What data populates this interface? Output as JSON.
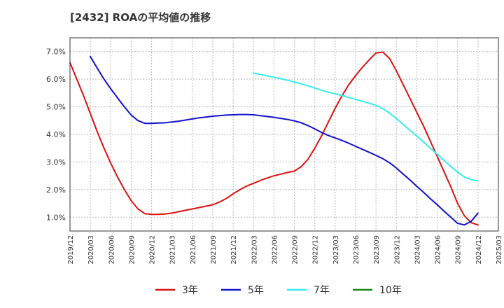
{
  "title": "[2432]  ROAの平均値の推移",
  "chart_data": {
    "type": "line",
    "ylim": [
      0.5,
      7.5
    ],
    "yticks": [
      1.0,
      2.0,
      3.0,
      4.0,
      5.0,
      6.0,
      7.0
    ],
    "ytick_labels": [
      "1.0%",
      "2.0%",
      "3.0%",
      "4.0%",
      "5.0%",
      "6.0%",
      "7.0%"
    ],
    "grid": true,
    "legend_position": "bottom",
    "xticks": [
      "2019/12",
      "2020/03",
      "2020/06",
      "2020/09",
      "2020/12",
      "2021/03",
      "2021/06",
      "2021/09",
      "2021/12",
      "2022/03",
      "2022/06",
      "2022/09",
      "2022/12",
      "2023/03",
      "2023/06",
      "2023/09",
      "2023/12",
      "2024/03",
      "2024/06",
      "2024/09",
      "2024/12",
      "2025/03"
    ],
    "series": [
      {
        "name": "3年",
        "color": "#dd1111",
        "points": [
          [
            "2019/12",
            6.6
          ],
          [
            "2020/01",
            6.0
          ],
          [
            "2020/02",
            5.4
          ],
          [
            "2020/03",
            4.75
          ],
          [
            "2020/04",
            4.1
          ],
          [
            "2020/05",
            3.5
          ],
          [
            "2020/06",
            2.95
          ],
          [
            "2020/07",
            2.45
          ],
          [
            "2020/08",
            2.0
          ],
          [
            "2020/09",
            1.6
          ],
          [
            "2020/10",
            1.3
          ],
          [
            "2020/11",
            1.13
          ],
          [
            "2020/12",
            1.1
          ],
          [
            "2021/01",
            1.1
          ],
          [
            "2021/02",
            1.12
          ],
          [
            "2021/03",
            1.15
          ],
          [
            "2021/04",
            1.2
          ],
          [
            "2021/05",
            1.25
          ],
          [
            "2021/06",
            1.3
          ],
          [
            "2021/07",
            1.35
          ],
          [
            "2021/08",
            1.4
          ],
          [
            "2021/09",
            1.45
          ],
          [
            "2021/10",
            1.55
          ],
          [
            "2021/11",
            1.68
          ],
          [
            "2021/12",
            1.85
          ],
          [
            "2022/01",
            2.0
          ],
          [
            "2022/02",
            2.13
          ],
          [
            "2022/03",
            2.23
          ],
          [
            "2022/04",
            2.33
          ],
          [
            "2022/05",
            2.42
          ],
          [
            "2022/06",
            2.5
          ],
          [
            "2022/07",
            2.56
          ],
          [
            "2022/08",
            2.62
          ],
          [
            "2022/09",
            2.67
          ],
          [
            "2022/10",
            2.83
          ],
          [
            "2022/11",
            3.1
          ],
          [
            "2022/12",
            3.5
          ],
          [
            "2023/01",
            3.95
          ],
          [
            "2023/02",
            4.45
          ],
          [
            "2023/03",
            4.95
          ],
          [
            "2023/04",
            5.4
          ],
          [
            "2023/05",
            5.8
          ],
          [
            "2023/06",
            6.13
          ],
          [
            "2023/07",
            6.43
          ],
          [
            "2023/08",
            6.7
          ],
          [
            "2023/09",
            6.95
          ],
          [
            "2023/10",
            6.98
          ],
          [
            "2023/11",
            6.75
          ],
          [
            "2023/12",
            6.3
          ],
          [
            "2024/01",
            5.8
          ],
          [
            "2024/02",
            5.3
          ],
          [
            "2024/03",
            4.8
          ],
          [
            "2024/04",
            4.3
          ],
          [
            "2024/05",
            3.75
          ],
          [
            "2024/06",
            3.2
          ],
          [
            "2024/07",
            2.65
          ],
          [
            "2024/08",
            2.1
          ],
          [
            "2024/09",
            1.5
          ],
          [
            "2024/10",
            1.05
          ],
          [
            "2024/11",
            0.8
          ],
          [
            "2024/12",
            0.72
          ]
        ]
      },
      {
        "name": "5年",
        "color": "#1111cc",
        "points": [
          [
            "2020/03",
            6.82
          ],
          [
            "2020/04",
            6.4
          ],
          [
            "2020/05",
            6.0
          ],
          [
            "2020/06",
            5.65
          ],
          [
            "2020/07",
            5.32
          ],
          [
            "2020/08",
            5.0
          ],
          [
            "2020/09",
            4.7
          ],
          [
            "2020/10",
            4.5
          ],
          [
            "2020/11",
            4.4
          ],
          [
            "2020/12",
            4.4
          ],
          [
            "2021/01",
            4.41
          ],
          [
            "2021/02",
            4.42
          ],
          [
            "2021/03",
            4.45
          ],
          [
            "2021/04",
            4.48
          ],
          [
            "2021/05",
            4.52
          ],
          [
            "2021/06",
            4.56
          ],
          [
            "2021/07",
            4.6
          ],
          [
            "2021/08",
            4.63
          ],
          [
            "2021/09",
            4.66
          ],
          [
            "2021/10",
            4.68
          ],
          [
            "2021/11",
            4.7
          ],
          [
            "2021/12",
            4.71
          ],
          [
            "2022/01",
            4.72
          ],
          [
            "2022/02",
            4.72
          ],
          [
            "2022/03",
            4.71
          ],
          [
            "2022/04",
            4.68
          ],
          [
            "2022/05",
            4.65
          ],
          [
            "2022/06",
            4.62
          ],
          [
            "2022/07",
            4.58
          ],
          [
            "2022/08",
            4.54
          ],
          [
            "2022/09",
            4.49
          ],
          [
            "2022/10",
            4.42
          ],
          [
            "2022/11",
            4.32
          ],
          [
            "2022/12",
            4.2
          ],
          [
            "2023/01",
            4.07
          ],
          [
            "2023/02",
            3.96
          ],
          [
            "2023/03",
            3.87
          ],
          [
            "2023/04",
            3.78
          ],
          [
            "2023/05",
            3.68
          ],
          [
            "2023/06",
            3.57
          ],
          [
            "2023/07",
            3.46
          ],
          [
            "2023/08",
            3.35
          ],
          [
            "2023/09",
            3.24
          ],
          [
            "2023/10",
            3.12
          ],
          [
            "2023/11",
            2.97
          ],
          [
            "2023/12",
            2.78
          ],
          [
            "2024/01",
            2.56
          ],
          [
            "2024/02",
            2.35
          ],
          [
            "2024/03",
            2.12
          ],
          [
            "2024/04",
            1.9
          ],
          [
            "2024/05",
            1.67
          ],
          [
            "2024/06",
            1.45
          ],
          [
            "2024/07",
            1.22
          ],
          [
            "2024/08",
            1.0
          ],
          [
            "2024/09",
            0.78
          ],
          [
            "2024/10",
            0.72
          ],
          [
            "2024/11",
            0.85
          ],
          [
            "2024/12",
            1.15
          ]
        ]
      },
      {
        "name": "7年",
        "color": "#33eeee",
        "points": [
          [
            "2022/03",
            6.22
          ],
          [
            "2022/04",
            6.17
          ],
          [
            "2022/05",
            6.12
          ],
          [
            "2022/06",
            6.07
          ],
          [
            "2022/07",
            6.02
          ],
          [
            "2022/08",
            5.96
          ],
          [
            "2022/09",
            5.9
          ],
          [
            "2022/10",
            5.83
          ],
          [
            "2022/11",
            5.76
          ],
          [
            "2022/12",
            5.68
          ],
          [
            "2023/01",
            5.6
          ],
          [
            "2023/02",
            5.53
          ],
          [
            "2023/03",
            5.47
          ],
          [
            "2023/04",
            5.41
          ],
          [
            "2023/05",
            5.34
          ],
          [
            "2023/06",
            5.27
          ],
          [
            "2023/07",
            5.2
          ],
          [
            "2023/08",
            5.13
          ],
          [
            "2023/09",
            5.05
          ],
          [
            "2023/10",
            4.93
          ],
          [
            "2023/11",
            4.77
          ],
          [
            "2023/12",
            4.57
          ],
          [
            "2024/01",
            4.36
          ],
          [
            "2024/02",
            4.15
          ],
          [
            "2024/03",
            3.94
          ],
          [
            "2024/04",
            3.72
          ],
          [
            "2024/05",
            3.5
          ],
          [
            "2024/06",
            3.28
          ],
          [
            "2024/07",
            3.06
          ],
          [
            "2024/08",
            2.84
          ],
          [
            "2024/09",
            2.63
          ],
          [
            "2024/10",
            2.46
          ],
          [
            "2024/11",
            2.36
          ],
          [
            "2024/12",
            2.32
          ]
        ]
      },
      {
        "name": "10年",
        "color": "#118811",
        "points": []
      }
    ]
  }
}
